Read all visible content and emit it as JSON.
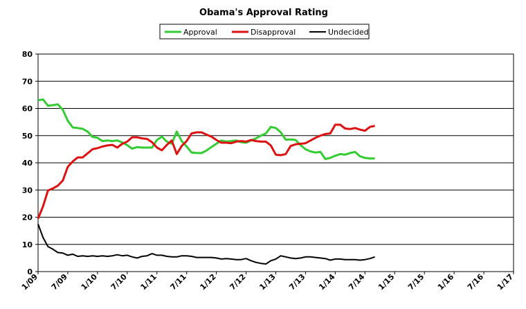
{
  "chart_data": {
    "type": "line",
    "title": "Obama's Approval Rating",
    "legend_position": "top-center",
    "grid": "horizontal",
    "ylim": [
      0,
      80
    ],
    "yticks": [
      0,
      10,
      20,
      30,
      40,
      50,
      60,
      70,
      80
    ],
    "xlim": [
      "2009-01",
      "2017-01"
    ],
    "xtick_labels": [
      "1/09",
      "7/09",
      "1/10",
      "7/10",
      "1/11",
      "7/11",
      "1/12",
      "7/12",
      "1/13",
      "7/13",
      "1/14",
      "7/14",
      "1/15",
      "7/15",
      "1/16",
      "7/16",
      "1/17"
    ],
    "x_dates": [
      "2009-01",
      "2009-02",
      "2009-03",
      "2009-04",
      "2009-05",
      "2009-06",
      "2009-07",
      "2009-08",
      "2009-09",
      "2009-10",
      "2009-11",
      "2009-12",
      "2010-01",
      "2010-02",
      "2010-03",
      "2010-04",
      "2010-05",
      "2010-06",
      "2010-07",
      "2010-08",
      "2010-09",
      "2010-10",
      "2010-11",
      "2010-12",
      "2011-01",
      "2011-02",
      "2011-03",
      "2011-04",
      "2011-05",
      "2011-06",
      "2011-07",
      "2011-08",
      "2011-09",
      "2011-10",
      "2011-11",
      "2011-12",
      "2012-01",
      "2012-02",
      "2012-03",
      "2012-04",
      "2012-05",
      "2012-06",
      "2012-07",
      "2012-08",
      "2012-09",
      "2012-10",
      "2012-11",
      "2012-12",
      "2013-01",
      "2013-02",
      "2013-03",
      "2013-04",
      "2013-05",
      "2013-06",
      "2013-07",
      "2013-08",
      "2013-09",
      "2013-10",
      "2013-11",
      "2013-12",
      "2014-01",
      "2014-02",
      "2014-03",
      "2014-04",
      "2014-05",
      "2014-06",
      "2014-07",
      "2014-08",
      "2014-09"
    ],
    "series": [
      {
        "name": "Approval",
        "color": "#33cc33",
        "values": [
          63.0,
          63.3,
          61.0,
          61.2,
          61.5,
          59.5,
          55.5,
          53.0,
          52.8,
          52.5,
          51.5,
          49.5,
          49.2,
          48.0,
          48.2,
          48.0,
          48.2,
          47.5,
          46.5,
          45.2,
          45.8,
          45.6,
          45.6,
          45.6,
          48.4,
          49.6,
          47.8,
          47.0,
          51.5,
          48.0,
          46.0,
          43.8,
          43.6,
          43.6,
          44.5,
          45.8,
          47.0,
          48.2,
          47.8,
          48.0,
          48.2,
          47.6,
          47.4,
          48.2,
          49.0,
          50.0,
          50.8,
          53.2,
          52.8,
          51.2,
          48.5,
          48.6,
          48.4,
          46.5,
          45.0,
          44.2,
          43.8,
          44.0,
          41.4,
          41.8,
          42.6,
          43.2,
          43.0,
          43.6,
          44.0,
          42.4,
          41.8,
          41.6,
          41.6
        ]
      },
      {
        "name": "Disapproval",
        "color": "#dd1111",
        "values": [
          19.5,
          24.0,
          29.8,
          30.6,
          31.6,
          33.5,
          38.5,
          40.5,
          42.0,
          42.0,
          43.5,
          45.0,
          45.4,
          46.0,
          46.4,
          46.6,
          45.6,
          47.0,
          47.8,
          49.4,
          49.4,
          49.0,
          48.8,
          47.6,
          45.6,
          44.6,
          46.6,
          48.2,
          43.2,
          46.2,
          48.0,
          50.8,
          51.2,
          51.2,
          50.4,
          49.6,
          48.4,
          47.4,
          47.4,
          47.2,
          47.8,
          48.0,
          47.8,
          48.4,
          48.0,
          47.8,
          47.8,
          46.4,
          43.0,
          42.8,
          43.2,
          46.2,
          46.8,
          47.0,
          47.2,
          48.2,
          49.2,
          50.0,
          50.6,
          50.8,
          54.0,
          54.0,
          52.6,
          52.4,
          52.8,
          52.2,
          51.8,
          53.2,
          53.6
        ]
      },
      {
        "name": "Undecided",
        "color": "#000000",
        "values": [
          17.5,
          12.5,
          9.2,
          8.2,
          7.0,
          6.8,
          6.0,
          6.4,
          5.6,
          5.8,
          5.6,
          5.8,
          5.6,
          5.8,
          5.6,
          5.8,
          6.2,
          5.8,
          6.0,
          5.4,
          5.0,
          5.6,
          5.8,
          6.6,
          6.0,
          6.0,
          5.6,
          5.4,
          5.4,
          5.8,
          5.8,
          5.6,
          5.2,
          5.2,
          5.2,
          5.2,
          5.0,
          4.6,
          4.8,
          4.6,
          4.4,
          4.4,
          4.8,
          4.0,
          3.4,
          3.0,
          2.8,
          4.0,
          4.6,
          5.8,
          5.4,
          5.0,
          4.8,
          5.0,
          5.4,
          5.4,
          5.2,
          5.0,
          4.8,
          4.2,
          4.6,
          4.6,
          4.4,
          4.4,
          4.4,
          4.2,
          4.4,
          4.8,
          5.4
        ]
      }
    ]
  }
}
